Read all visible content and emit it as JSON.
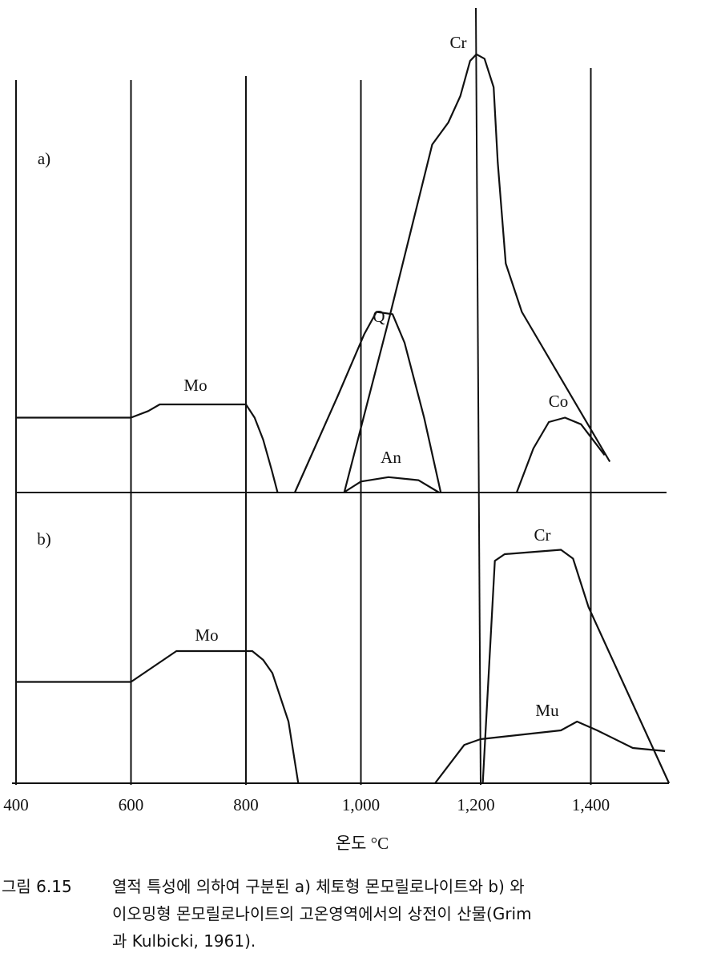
{
  "chart_data": {
    "type": "line",
    "xlabel": "온도 °C",
    "xlim": [
      400,
      1550
    ],
    "x_ticks": [
      "400",
      "600",
      "800",
      "1,000",
      "1,200",
      "1,400"
    ],
    "x_tick_values": [
      400,
      600,
      800,
      1000,
      1200,
      1400
    ],
    "ylabel": "",
    "grid": "vertical lines at ticks",
    "panels": [
      {
        "label": "a)",
        "series": [
          {
            "name": "Mo",
            "points": [
              [
                400,
                0.17
              ],
              [
                600,
                0.17
              ],
              [
                630,
                0.185
              ],
              [
                650,
                0.2
              ],
              [
                800,
                0.2
              ],
              [
                815,
                0.17
              ],
              [
                830,
                0.12
              ],
              [
                845,
                0.05
              ],
              [
                855,
                0
              ]
            ]
          },
          {
            "name": "Q",
            "points": [
              [
                885,
                0
              ],
              [
                960,
                0.22
              ],
              [
                1006,
                0.36
              ],
              [
                1027,
                0.41
              ],
              [
                1055,
                0.405
              ],
              [
                1076,
                0.34
              ],
              [
                1110,
                0.17
              ],
              [
                1139,
                0
              ]
            ]
          },
          {
            "name": "An",
            "points": [
              [
                970,
                0
              ],
              [
                1000,
                0.025
              ],
              [
                1048,
                0.035
              ],
              [
                1100,
                0.028
              ],
              [
                1136,
                0
              ]
            ]
          },
          {
            "name": "Cr",
            "points": [
              [
                971,
                0
              ],
              [
                1050,
                0.4
              ],
              [
                1124,
                0.79
              ],
              [
                1152,
                0.84
              ],
              [
                1173,
                0.9
              ],
              [
                1190,
                0.98
              ],
              [
                1201,
                0.995
              ],
              [
                1215,
                0.985
              ],
              [
                1231,
                0.92
              ],
              [
                1238,
                0.75
              ],
              [
                1252,
                0.52
              ],
              [
                1280,
                0.41
              ],
              [
                1433,
                0.07
              ]
            ]
          },
          {
            "name": "Co",
            "points": [
              [
                1271,
                0
              ],
              [
                1300,
                0.1
              ],
              [
                1327,
                0.16
              ],
              [
                1355,
                0.17
              ],
              [
                1383,
                0.155
              ],
              [
                1424,
                0.085
              ]
            ]
          }
        ]
      },
      {
        "label": "b)",
        "series": [
          {
            "name": "Mo",
            "points": [
              [
                400,
                0.23
              ],
              [
                600,
                0.23
              ],
              [
                679,
                0.3
              ],
              [
                811,
                0.3
              ],
              [
                830,
                0.28
              ],
              [
                846,
                0.25
              ],
              [
                874,
                0.14
              ],
              [
                891,
                0
              ]
            ]
          },
          {
            "name": "Cr",
            "points": [
              [
                1212,
                0
              ],
              [
                1233,
                0.505
              ],
              [
                1250,
                0.52
              ],
              [
                1348,
                0.53
              ],
              [
                1369,
                0.51
              ],
              [
                1396,
                0.4
              ],
              [
                1431,
                0.3
              ],
              [
                1473,
                0.18
              ],
              [
                1536,
                0
              ]
            ]
          },
          {
            "name": "Mu",
            "points": [
              [
                1129,
                0
              ],
              [
                1180,
                0.087
              ],
              [
                1208,
                0.1
              ],
              [
                1348,
                0.12
              ],
              [
                1376,
                0.14
              ],
              [
                1411,
                0.12
              ],
              [
                1473,
                0.08
              ],
              [
                1529,
                0.073
              ]
            ]
          }
        ]
      }
    ]
  },
  "caption": {
    "number": "그림 6.15",
    "line1": "열적 특성에 의하여 구분된 a) 체토형 몬모릴로나이트와 b) 와",
    "line2": "이오밍형 몬모릴로나이트의 고온영역에서의 상전이 산물(Grim",
    "line3": "과 Kulbicki, 1961)."
  }
}
